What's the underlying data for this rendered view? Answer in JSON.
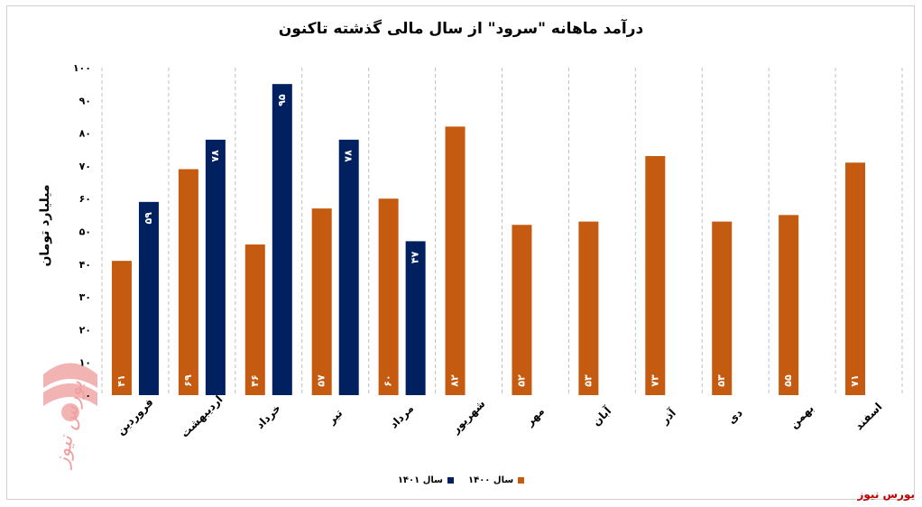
{
  "chart_data": {
    "type": "bar",
    "title": "درآمد ماهانه \"سرود\" از سال مالی گذشته تاکنون",
    "ylabel": "میلیارد تومان",
    "xlabel": "",
    "ylim": [
      0,
      100
    ],
    "yticks": [
      "۰",
      "۱۰",
      "۲۰",
      "۳۰",
      "۴۰",
      "۵۰",
      "۶۰",
      "۷۰",
      "۸۰",
      "۹۰",
      "۱۰۰"
    ],
    "categories": [
      "فروردین",
      "اردیبهشت",
      "خرداد",
      "تیر",
      "مرداد",
      "شهریور",
      "مهر",
      "آبان",
      "آذر",
      "دی",
      "بهمن",
      "اسفند"
    ],
    "series": [
      {
        "name": "سال ۱۴۰۰",
        "color": "#c55a11",
        "values": [
          41,
          69,
          46,
          57,
          60,
          82,
          52,
          53,
          73,
          53,
          55,
          71
        ],
        "labels": [
          "۴۱",
          "۶۹",
          "۴۶",
          "۵۷",
          "۶۰",
          "۸۲",
          "۵۲",
          "۵۳",
          "۷۳",
          "۵۳",
          "۵۵",
          "۷۱"
        ]
      },
      {
        "name": "سال ۱۴۰۱",
        "color": "#002060",
        "values": [
          59,
          78,
          95,
          78,
          47,
          null,
          null,
          null,
          null,
          null,
          null,
          null
        ],
        "labels": [
          "۵۹",
          "۷۸",
          "۹۵",
          "۷۸",
          "۴۷",
          "",
          "",
          "",
          "",
          "",
          "",
          ""
        ]
      }
    ],
    "legend_position": "bottom",
    "grid": "vertical-dashed"
  },
  "watermark": {
    "text": "بورس نیوز"
  },
  "brand": {
    "text": "بورس نیوز"
  }
}
